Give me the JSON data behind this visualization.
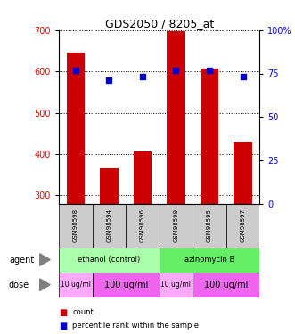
{
  "title": "GDS2050 / 8205_at",
  "samples": [
    "GSM98598",
    "GSM98594",
    "GSM98596",
    "GSM98599",
    "GSM98595",
    "GSM98597"
  ],
  "counts": [
    645,
    365,
    407,
    697,
    606,
    430
  ],
  "percentiles": [
    77,
    71,
    73,
    77,
    77,
    73
  ],
  "ymin": 280,
  "ymax": 700,
  "yticks_left": [
    300,
    400,
    500,
    600,
    700
  ],
  "yticks_right": [
    0,
    25,
    50,
    75,
    100
  ],
  "bar_color": "#cc0000",
  "dot_color": "#0000cc",
  "agent_ethanol": "ethanol (control)",
  "agent_azinomycin": "azinomycin B",
  "agent_color_ethanol": "#aaffaa",
  "agent_color_azinomycin": "#66ee66",
  "dose_small": "10 ug/ml",
  "dose_large": "100 ug/ml",
  "dose_color_small": "#ffaaff",
  "dose_color_large": "#ee66ee",
  "legend_count": "count",
  "legend_pct": "percentile rank within the sample",
  "sample_bg_color": "#cccccc",
  "bg_color": "#ffffff"
}
